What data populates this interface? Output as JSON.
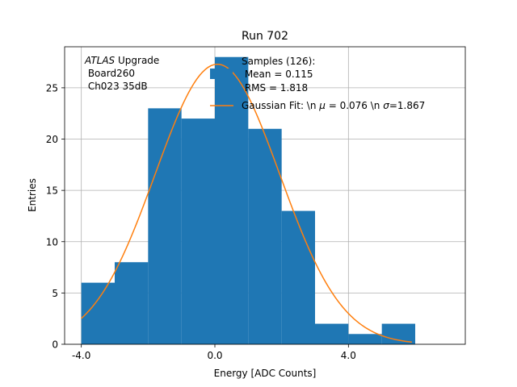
{
  "chart_data": {
    "type": "bar",
    "title": "Run 702",
    "xlabel": "Energy [ADC Counts]",
    "ylabel": "Entries",
    "xlim": [
      -4.5,
      7.5
    ],
    "ylim": [
      0,
      29
    ],
    "grid": true,
    "xticks": [
      -4.0,
      0.0,
      4.0
    ],
    "xtick_labels": [
      "-4.0",
      "0.0",
      "4.0"
    ],
    "yticks": [
      0,
      5,
      10,
      15,
      20,
      25
    ],
    "ytick_labels": [
      "0",
      "5",
      "10",
      "15",
      "20",
      "25"
    ],
    "bin_edges": [
      -4,
      -3,
      -2,
      -1,
      0,
      1,
      2,
      3,
      4,
      5,
      6
    ],
    "values": [
      6,
      8,
      23,
      22,
      28,
      21,
      13,
      2,
      1,
      2
    ],
    "hist_color": "#1f77b4",
    "fit": {
      "mu": 0.076,
      "sigma": 1.867,
      "amplitude": 27.3,
      "x_range": [
        -4.0,
        5.9
      ],
      "color": "#ff7f0e"
    },
    "annotation": {
      "italic": "ATLAS",
      "rest": " Upgrade",
      "line2": " Board260",
      "line3": " Ch023 35dB"
    },
    "legend": {
      "placement": "top-right",
      "samples_line1": "Samples (126):",
      "samples_line2": " Mean = 0.115",
      "samples_line3": " RMS = 1.818",
      "fit_pre": "Gaussian Fit: \\n ",
      "fit_mu_sym": "μ",
      "fit_mid": " = 0.076 \\n ",
      "fit_sigma_sym": "σ",
      "fit_post": "=1.867"
    }
  }
}
